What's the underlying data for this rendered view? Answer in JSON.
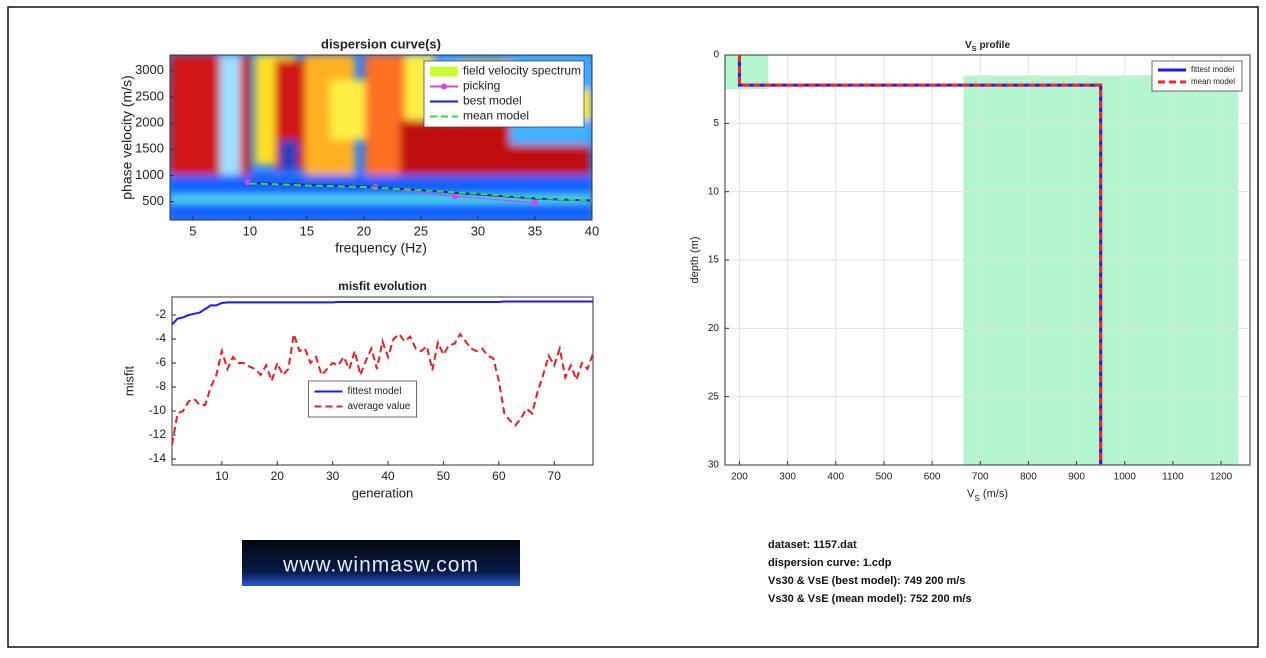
{
  "chart_data": [
    {
      "type": "line",
      "title": "dispersion curve(s)",
      "x_label": "frequency (Hz)",
      "y_label": "phase velocity (m/s)",
      "xlim": [
        3,
        40
      ],
      "xticks": [
        5,
        10,
        15,
        20,
        25,
        30,
        35,
        40
      ],
      "ylim": [
        150,
        3300
      ],
      "yticks": [
        500,
        1000,
        1500,
        2000,
        2500,
        3000
      ],
      "legend": "upper right",
      "grid": false,
      "series": [
        {
          "name": "field velocity spectrum",
          "color": "#ccff33"
        },
        {
          "name": "picking",
          "color": "#e040e0",
          "marker": true,
          "x": [
            9.8,
            21,
            28,
            35
          ],
          "values": [
            870,
            780,
            600,
            480
          ]
        },
        {
          "name": "best model",
          "color": "#1020c0",
          "x": [
            10,
            15,
            20,
            25,
            30,
            35,
            40
          ],
          "values": [
            860,
            820,
            790,
            720,
            640,
            560,
            520
          ]
        },
        {
          "name": "mean model",
          "color": "#33dd33",
          "dash": true,
          "x": [
            10,
            15,
            20,
            25,
            30,
            35,
            40
          ],
          "values": [
            850,
            810,
            780,
            720,
            650,
            570,
            520
          ]
        }
      ]
    },
    {
      "type": "line",
      "title": "misfit evolution",
      "x_label": "generation",
      "y_label": "misfit",
      "xlim": [
        1,
        77
      ],
      "xticks": [
        10,
        20,
        30,
        40,
        50,
        60,
        70
      ],
      "ylim": [
        -14.5,
        -0.5
      ],
      "yticks": [
        -14,
        -12,
        -10,
        -8,
        -6,
        -4,
        -2
      ],
      "legend": "center",
      "grid": false,
      "x": [
        1,
        2,
        3,
        4,
        5,
        6,
        7,
        8,
        9,
        10,
        11,
        12,
        13,
        14,
        15,
        16,
        17,
        18,
        19,
        20,
        21,
        22,
        23,
        24,
        25,
        26,
        27,
        28,
        29,
        30,
        31,
        32,
        33,
        34,
        35,
        36,
        37,
        38,
        39,
        40,
        41,
        42,
        43,
        44,
        45,
        46,
        47,
        48,
        49,
        50,
        51,
        52,
        53,
        54,
        55,
        56,
        57,
        58,
        59,
        60,
        61,
        62,
        63,
        64,
        65,
        66,
        67,
        68,
        69,
        70,
        71,
        72,
        73,
        74,
        75,
        76,
        77
      ],
      "series": [
        {
          "name": "fittest model",
          "color": "#1a1aff",
          "values": [
            -2.8,
            -2.3,
            -2.2,
            -2.0,
            -1.9,
            -1.8,
            -1.5,
            -1.2,
            -1.2,
            -1.0,
            -0.95,
            -0.95,
            -0.95,
            -0.95,
            -0.95,
            -0.95,
            -0.95,
            -0.95,
            -0.95,
            -0.95,
            -0.95,
            -0.95,
            -0.95,
            -0.95,
            -0.95,
            -0.95,
            -0.95,
            -0.95,
            -0.95,
            -0.95,
            -0.92,
            -0.92,
            -0.92,
            -0.92,
            -0.92,
            -0.92,
            -0.92,
            -0.92,
            -0.92,
            -0.92,
            -0.92,
            -0.92,
            -0.92,
            -0.92,
            -0.92,
            -0.92,
            -0.92,
            -0.92,
            -0.92,
            -0.92,
            -0.92,
            -0.92,
            -0.92,
            -0.92,
            -0.92,
            -0.92,
            -0.92,
            -0.92,
            -0.92,
            -0.92,
            -0.88,
            -0.88,
            -0.88,
            -0.88,
            -0.88,
            -0.88,
            -0.88,
            -0.88,
            -0.88,
            -0.88,
            -0.88,
            -0.88,
            -0.88,
            -0.88,
            -0.88,
            -0.88,
            -0.88
          ]
        },
        {
          "name": "average value",
          "color": "#e52020",
          "dash": true,
          "values": [
            -12.8,
            -10.2,
            -10,
            -9.2,
            -9,
            -9.5,
            -9.5,
            -8,
            -7,
            -5,
            -6.5,
            -5.5,
            -6,
            -6,
            -6.3,
            -6.5,
            -7,
            -6.2,
            -7.5,
            -6,
            -7,
            -6.5,
            -3.6,
            -5,
            -4.8,
            -6,
            -5.5,
            -7,
            -6.5,
            -6,
            -6.2,
            -5.5,
            -6.5,
            -5,
            -7,
            -5.8,
            -4.8,
            -6.5,
            -4.2,
            -5.5,
            -4,
            -3.6,
            -4.2,
            -3.8,
            -4.8,
            -5,
            -4.6,
            -6.6,
            -4.3,
            -5.3,
            -4.5,
            -4.4,
            -3.6,
            -4.2,
            -4.8,
            -5,
            -4.8,
            -5.4,
            -5.6,
            -7.5,
            -10.2,
            -10.8,
            -11.2,
            -10.6,
            -9.8,
            -10.2,
            -8.4,
            -7,
            -5.4,
            -6.2,
            -4.8,
            -7.2,
            -6.2,
            -7.4,
            -6,
            -6.5,
            -5.2
          ]
        }
      ]
    },
    {
      "type": "profile",
      "title": [
        "V",
        "S",
        " profile"
      ],
      "x_label": [
        "V",
        "S",
        " (m/s)"
      ],
      "y_label": "depth (m)",
      "xlim": [
        170,
        1260
      ],
      "xticks": [
        200,
        300,
        400,
        500,
        600,
        700,
        800,
        900,
        1000,
        1100,
        1200
      ],
      "ylim": [
        0,
        30
      ],
      "yticks": [
        0,
        5,
        10,
        15,
        20,
        25,
        30
      ],
      "y_reversed": true,
      "legend": "upper right",
      "grid": true,
      "band_color": "#b3f5cc",
      "bands": [
        {
          "vs": [
            170,
            260
          ],
          "depth": [
            0,
            2.5
          ]
        },
        {
          "vs": [
            665,
            1235
          ],
          "depth": [
            1.5,
            30
          ]
        }
      ],
      "series": [
        {
          "name": "fittest model",
          "color": "#1a1aff",
          "values": [
            200,
            200,
            950,
            950
          ],
          "depth": [
            0,
            2.2,
            2.2,
            30
          ]
        },
        {
          "name": "mean model",
          "color": "#ff2222",
          "dash": true,
          "values": [
            200,
            200,
            950,
            950
          ],
          "depth": [
            0,
            2.2,
            2.2,
            30
          ]
        }
      ]
    }
  ],
  "info": [
    "dataset: 1157.dat",
    "dispersion curve: 1.cdp",
    "Vs30 & VsE (best model): 749  200 m/s",
    "Vs30 & VsE (mean model): 752  200 m/s"
  ],
  "logo": "www.winmasw.com"
}
